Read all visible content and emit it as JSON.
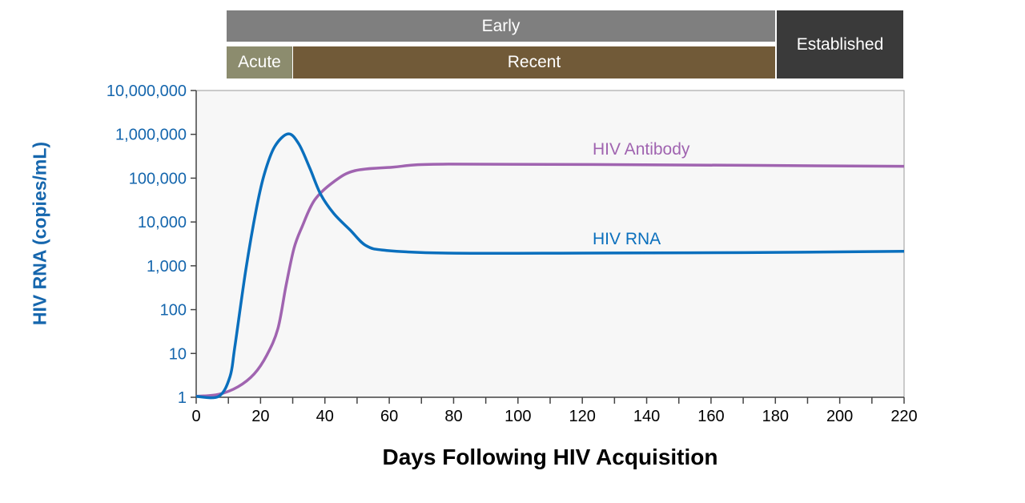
{
  "phases": {
    "early": "Early",
    "acute": "Acute",
    "recent": "Recent",
    "established": "Established"
  },
  "colors": {
    "rna": "#0a6fbd",
    "antibody": "#a064b0",
    "early": "#7f7f7f",
    "acute": "#8c8c6e",
    "recent": "#715a38",
    "established": "#3a3a3a",
    "axis_text": "#1566ad"
  },
  "chart_data": {
    "type": "line",
    "title": "",
    "xlabel": "Days Following HIV Acquisition",
    "ylabel": "HIV RNA (copies/mL)",
    "xlim": [
      0,
      220
    ],
    "ylim": [
      1,
      10000000
    ],
    "yscale": "log",
    "xticks": [
      0,
      20,
      40,
      60,
      80,
      100,
      120,
      140,
      160,
      180,
      200,
      220
    ],
    "xtick_labels": [
      "0",
      "20",
      "40",
      "60",
      "80",
      "100",
      "120",
      "140",
      "160",
      "180",
      "200",
      "220"
    ],
    "yticks": [
      1,
      10,
      100,
      1000,
      10000,
      100000,
      1000000,
      10000000
    ],
    "ytick_labels": [
      "1",
      "10",
      "100",
      "1,000",
      "10,000",
      "100,000",
      "1,000,000",
      "10,000,000"
    ],
    "series": [
      {
        "name": "HIV RNA",
        "label": "HIV RNA",
        "x": [
          0,
          7,
          10.5,
          12,
          15.4,
          18.7,
          21.2,
          24.4,
          28.6,
          31.9,
          35.3,
          38.7,
          42.8,
          47.8,
          52.8,
          59.2,
          78,
          120,
          170,
          220
        ],
        "y": [
          1.05,
          1.05,
          2.95,
          14,
          794,
          19950,
          125900,
          524800,
          1023000,
          602600,
          169800,
          42660,
          15490,
          6607,
          2884,
          2239,
          1950,
          1950,
          2000,
          2140
        ]
      },
      {
        "name": "HIV Antibody",
        "label": "HIV Antibody",
        "x": [
          0,
          7,
          13,
          18,
          22,
          25.4,
          27.9,
          30.4,
          32.9,
          36.8,
          42.8,
          49.3,
          61,
          78.4,
          150,
          220
        ],
        "y": [
          1.05,
          1.17,
          1.74,
          3.4,
          9.3,
          37,
          347,
          2512,
          7762,
          31620,
          83180,
          147900,
          177800,
          208900,
          200000,
          186200
        ]
      }
    ]
  }
}
